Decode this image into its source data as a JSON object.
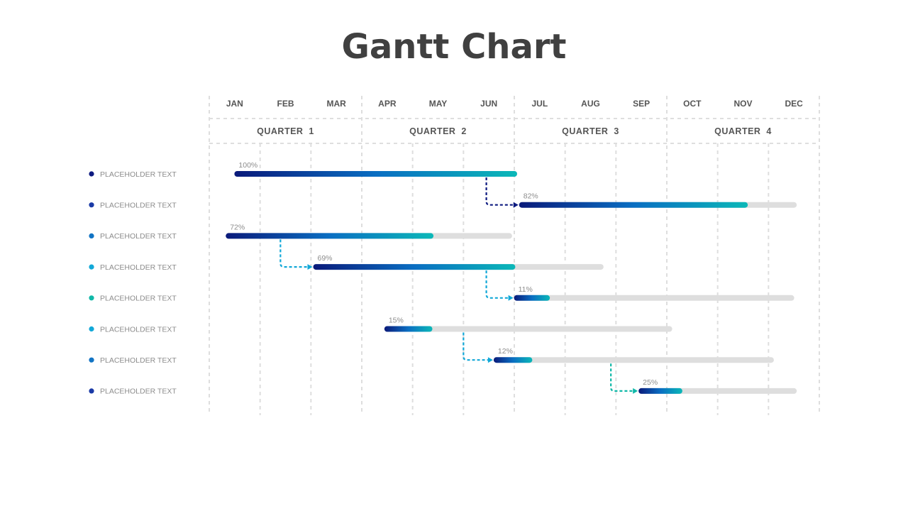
{
  "title": "Gantt Chart",
  "colors": {
    "grid": "#dedede",
    "track": "#dedede",
    "gradient_start": "#0a1a7a",
    "gradient_mid": "#0a6ec2",
    "gradient_end": "#0bb8b8",
    "dot_colors": [
      "#0d1a80",
      "#1a3aa6",
      "#1274c4",
      "#12a8d8",
      "#10b8a8",
      "#12a8d8",
      "#1274c4",
      "#1a3aa6"
    ],
    "arrow_colors": [
      "#0d1a80",
      "#12a8d8",
      "#12a8d8",
      "#12a8d8",
      "#10b8a8"
    ]
  },
  "chart_data": {
    "type": "gantt",
    "title": "Gantt Chart",
    "x_unit": "months",
    "x_range": [
      0,
      12
    ],
    "months": [
      "JAN",
      "FEB",
      "MAR",
      "APR",
      "MAY",
      "JUN",
      "JUL",
      "AUG",
      "SEP",
      "OCT",
      "NOV",
      "DEC"
    ],
    "quarters": [
      "QUARTER  1",
      "QUARTER  2",
      "QUARTER  3",
      "QUARTER  4"
    ],
    "tasks": [
      {
        "label": "PLACEHOLDER TEXT",
        "start": 0.55,
        "end": 6.0,
        "progress": 100,
        "progress_label": "100%"
      },
      {
        "label": "PLACEHOLDER TEXT",
        "start": 6.15,
        "end": 11.5,
        "progress": 82,
        "progress_label": "82%"
      },
      {
        "label": "PLACEHOLDER TEXT",
        "start": 0.38,
        "end": 5.9,
        "progress": 72,
        "progress_label": "72%"
      },
      {
        "label": "PLACEHOLDER TEXT",
        "start": 2.1,
        "end": 7.7,
        "progress": 69,
        "progress_label": "69%"
      },
      {
        "label": "PLACEHOLDER TEXT",
        "start": 6.05,
        "end": 11.45,
        "progress": 11,
        "progress_label": "11%"
      },
      {
        "label": "PLACEHOLDER TEXT",
        "start": 3.5,
        "end": 9.05,
        "progress": 15,
        "progress_label": "15%"
      },
      {
        "label": "PLACEHOLDER TEXT",
        "start": 5.65,
        "end": 11.05,
        "progress": 12,
        "progress_label": "12%"
      },
      {
        "label": "PLACEHOLDER TEXT",
        "start": 8.5,
        "end": 11.5,
        "progress": 25,
        "progress_label": "25%"
      }
    ],
    "dependencies": [
      {
        "from": 0,
        "to": 1,
        "x": 5.45
      },
      {
        "from": 2,
        "to": 3,
        "x": 1.4
      },
      {
        "from": 3,
        "to": 4,
        "x": 5.45
      },
      {
        "from": 5,
        "to": 6,
        "x": 5.0
      },
      {
        "from": 6,
        "to": 7,
        "x": 7.9
      }
    ]
  }
}
